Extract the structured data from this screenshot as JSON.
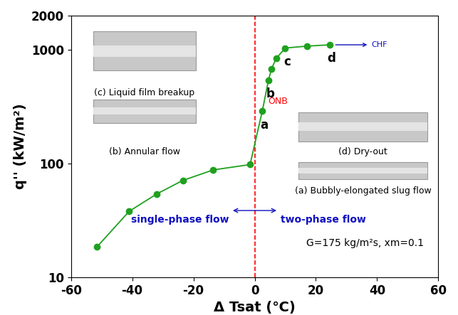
{
  "chart_data": {
    "type": "line",
    "x_label": "Δ Tsat (℃)",
    "y_label": "q'' (kW/m²)",
    "x": [
      -51.5,
      -41,
      -32,
      -23.5,
      -13.5,
      -1.5,
      2.5,
      4.5,
      5.5,
      7,
      10,
      17,
      24.5
    ],
    "values": [
      18.5,
      38,
      54,
      71,
      88,
      98,
      290,
      540,
      680,
      840,
      1040,
      1080,
      1110
    ],
    "point_labels": [
      null,
      null,
      null,
      null,
      null,
      null,
      "a",
      "b",
      null,
      null,
      "c",
      null,
      "d"
    ],
    "color": "#1fa01f",
    "marker": "circle",
    "line_style": "solid",
    "log": "y",
    "xlim": [
      -60,
      60
    ],
    "xticks": [
      -60,
      -40,
      -20,
      0,
      20,
      40,
      60
    ],
    "ylim": [
      10,
      2000
    ],
    "yticks": [
      10,
      100,
      1000,
      2000
    ],
    "reference_line": {
      "x": 0,
      "color": "#ff0000",
      "line_style": "dashed"
    },
    "annotations": [
      {
        "text": "ONB",
        "x": 2.5,
        "y": 290,
        "color": "#ff0000"
      },
      {
        "text": "CHF",
        "x": 24.5,
        "y": 1110,
        "color": "#1010c0"
      }
    ],
    "photo_captions": [
      "(c) Liquid film breakup",
      "(b) Annular flow",
      "(d) Dry-out",
      "(a) Bubbly-elongated slug flow"
    ],
    "regions": {
      "left": "single-phase flow",
      "right": "two-phase flow",
      "color": "#1010c0"
    },
    "note": "G=175 kg/m²s, xm=0.1"
  }
}
